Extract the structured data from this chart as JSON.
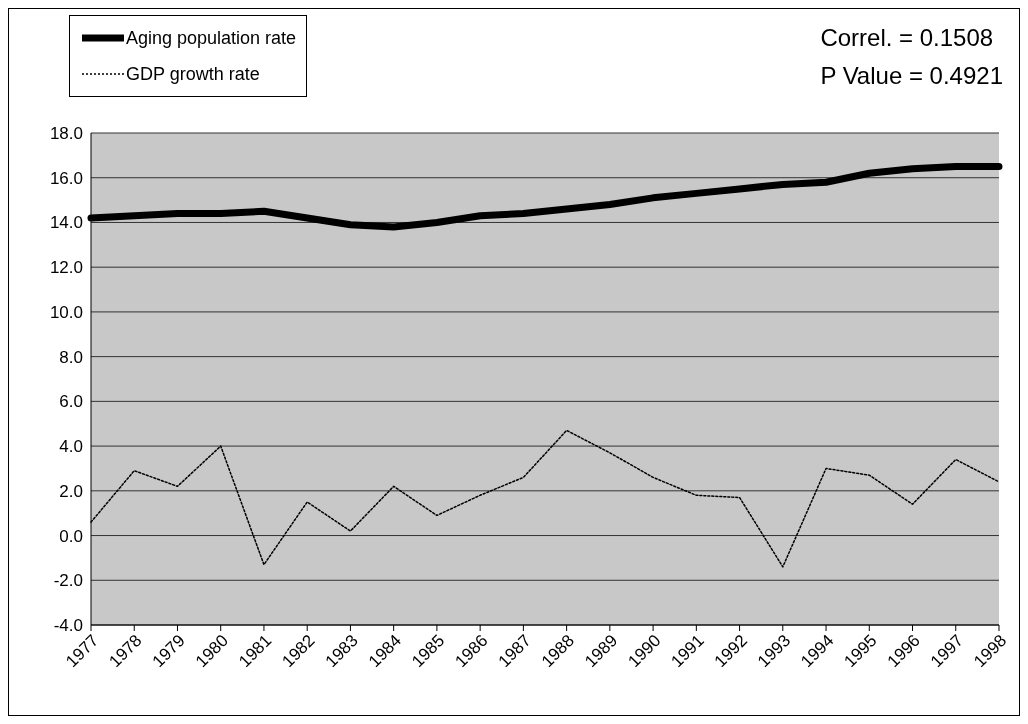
{
  "chart_data": {
    "type": "line",
    "categories": [
      "1977",
      "1978",
      "1979",
      "1980",
      "1981",
      "1982",
      "1983",
      "1984",
      "1985",
      "1986",
      "1987",
      "1988",
      "1989",
      "1990",
      "1991",
      "1992",
      "1993",
      "1994",
      "1995",
      "1996",
      "1997",
      "1998"
    ],
    "series": [
      {
        "name": "Aging population rate",
        "color": "#000000",
        "line_style": "solid",
        "values": [
          14.2,
          14.3,
          14.4,
          14.4,
          14.5,
          14.2,
          13.9,
          13.8,
          14.0,
          14.3,
          14.4,
          14.6,
          14.8,
          15.1,
          15.3,
          15.5,
          15.7,
          15.8,
          16.2,
          16.4,
          16.5,
          16.5
        ]
      },
      {
        "name": "GDP growth rate",
        "color": "#000000",
        "line_style": "dotted",
        "values": [
          0.6,
          2.9,
          2.2,
          4.0,
          -1.3,
          1.5,
          0.2,
          2.2,
          0.9,
          1.8,
          2.6,
          4.7,
          3.7,
          2.6,
          1.8,
          1.7,
          -1.4,
          3.0,
          2.7,
          1.4,
          3.4,
          2.4
        ]
      }
    ],
    "ylim": [
      -4,
      18
    ],
    "yticks": [
      {
        "value": -4,
        "label": "-4.0"
      },
      {
        "value": -2,
        "label": "-2.0"
      },
      {
        "value": 0,
        "label": "0.0"
      },
      {
        "value": 2,
        "label": "2.0"
      },
      {
        "value": 4,
        "label": "4.0"
      },
      {
        "value": 6,
        "label": "6.0"
      },
      {
        "value": 8,
        "label": "8.0"
      },
      {
        "value": 10,
        "label": "10.0"
      },
      {
        "value": 12,
        "label": "12.0"
      },
      {
        "value": 14,
        "label": "14.0"
      },
      {
        "value": 16,
        "label": "16.0"
      },
      {
        "value": 18,
        "label": "18.0"
      }
    ],
    "grid": "y",
    "legend": "top left",
    "marker": "none",
    "annotations": [
      "Correl. = 0.1508",
      "P Value = 0.4921"
    ]
  }
}
